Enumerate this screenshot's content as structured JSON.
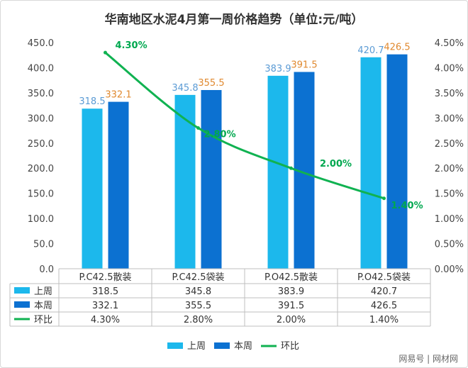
{
  "chart_data": {
    "type": "bar",
    "title": "华南地区水泥4月第一周价格趋势（单位:元/吨）",
    "categories": [
      "P.C42.5散装",
      "P.C42.5袋装",
      "P.O42.5散装",
      "P.O42.5袋装"
    ],
    "series": [
      {
        "name": "上周",
        "type": "bar",
        "color": "#1cb8ec",
        "values": [
          318.5,
          345.8,
          383.9,
          420.7
        ],
        "labels": [
          "318.5",
          "345.8",
          "383.9",
          "420.7"
        ],
        "label_color": "#5b9bd5"
      },
      {
        "name": "本周",
        "type": "bar",
        "color": "#0c71d1",
        "values": [
          332.1,
          355.5,
          391.5,
          426.5
        ],
        "labels": [
          "332.1",
          "355.5",
          "391.5",
          "426.5"
        ],
        "label_color": "#e0892f"
      },
      {
        "name": "环比",
        "type": "line",
        "axis": "right",
        "color": "#10b251",
        "values": [
          4.3,
          2.8,
          2.0,
          1.4
        ],
        "labels": [
          "4.30%",
          "2.80%",
          "2.00%",
          "1.40%"
        ]
      }
    ],
    "left_axis": {
      "min": 0,
      "max": 450,
      "ticks": [
        "0.0",
        "50.0",
        "100.0",
        "150.0",
        "200.0",
        "250.0",
        "300.0",
        "350.0",
        "400.0",
        "450.0"
      ]
    },
    "right_axis": {
      "min": 0,
      "max": 4.5,
      "ticks": [
        "0.00%",
        "0.50%",
        "1.00%",
        "1.50%",
        "2.00%",
        "2.50%",
        "3.00%",
        "3.50%",
        "4.00%",
        "4.50%"
      ]
    },
    "grid": false,
    "legend": "bottom",
    "table": {
      "rows": [
        {
          "name": "上周",
          "values": [
            "318.5",
            "345.8",
            "383.9",
            "420.7"
          ]
        },
        {
          "name": "本周",
          "values": [
            "332.1",
            "355.5",
            "391.5",
            "426.5"
          ]
        },
        {
          "name": "环比",
          "values": [
            "4.30%",
            "2.80%",
            "2.00%",
            "1.40%"
          ]
        }
      ]
    }
  },
  "watermark": {
    "text": "网易号 | 网材网"
  }
}
